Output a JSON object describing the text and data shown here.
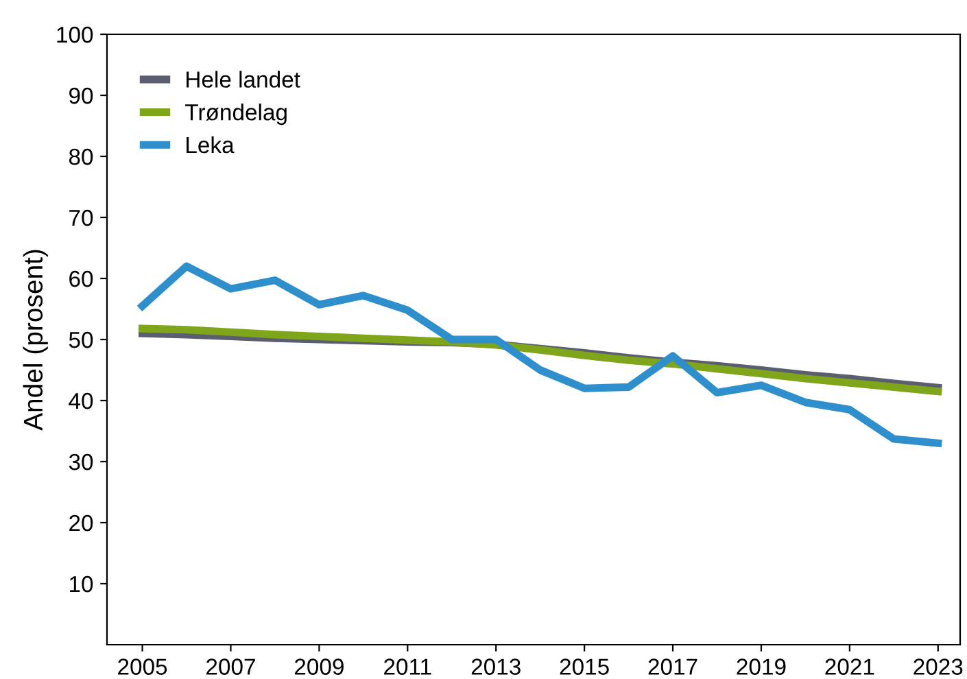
{
  "chart_data": {
    "type": "line",
    "ylabel": "Andel (prosent)",
    "x": [
      2005,
      2006,
      2007,
      2008,
      2009,
      2010,
      2011,
      2012,
      2013,
      2014,
      2015,
      2016,
      2017,
      2018,
      2019,
      2020,
      2021,
      2022,
      2023
    ],
    "series": [
      {
        "name": "Hele landet",
        "color": "#5a5e6e",
        "values": [
          51,
          50.8,
          50.5,
          50.2,
          50,
          49.8,
          49.6,
          49.5,
          49.2,
          48.5,
          47.8,
          47,
          46.3,
          45.7,
          45,
          44.2,
          43.6,
          42.8,
          42.1
        ]
      },
      {
        "name": "Trøndelag",
        "color": "#7fa61a",
        "values": [
          51.8,
          51.6,
          51.2,
          50.8,
          50.5,
          50.2,
          49.9,
          49.6,
          49.1,
          48.3,
          47.4,
          46.6,
          46,
          45.2,
          44.4,
          43.6,
          42.9,
          42.2,
          41.5
        ]
      },
      {
        "name": "Leka",
        "color": "#2f8fcc",
        "values": [
          55.5,
          62,
          58.3,
          59.7,
          55.7,
          57.2,
          54.8,
          50,
          50,
          45,
          42,
          42.2,
          47.3,
          41.3,
          42.5,
          39.7,
          38.5,
          33.7,
          33
        ]
      }
    ],
    "xlim": [
      2004.2,
      2023.5
    ],
    "xticks": [
      2005,
      2007,
      2009,
      2011,
      2013,
      2015,
      2017,
      2019,
      2021,
      2023
    ],
    "ylim": [
      0,
      100
    ],
    "yticks": [
      10,
      20,
      30,
      40,
      50,
      60,
      70,
      80,
      90,
      100
    ],
    "grid": false,
    "legend": "top left",
    "marker": "none",
    "line_style": "solid"
  }
}
